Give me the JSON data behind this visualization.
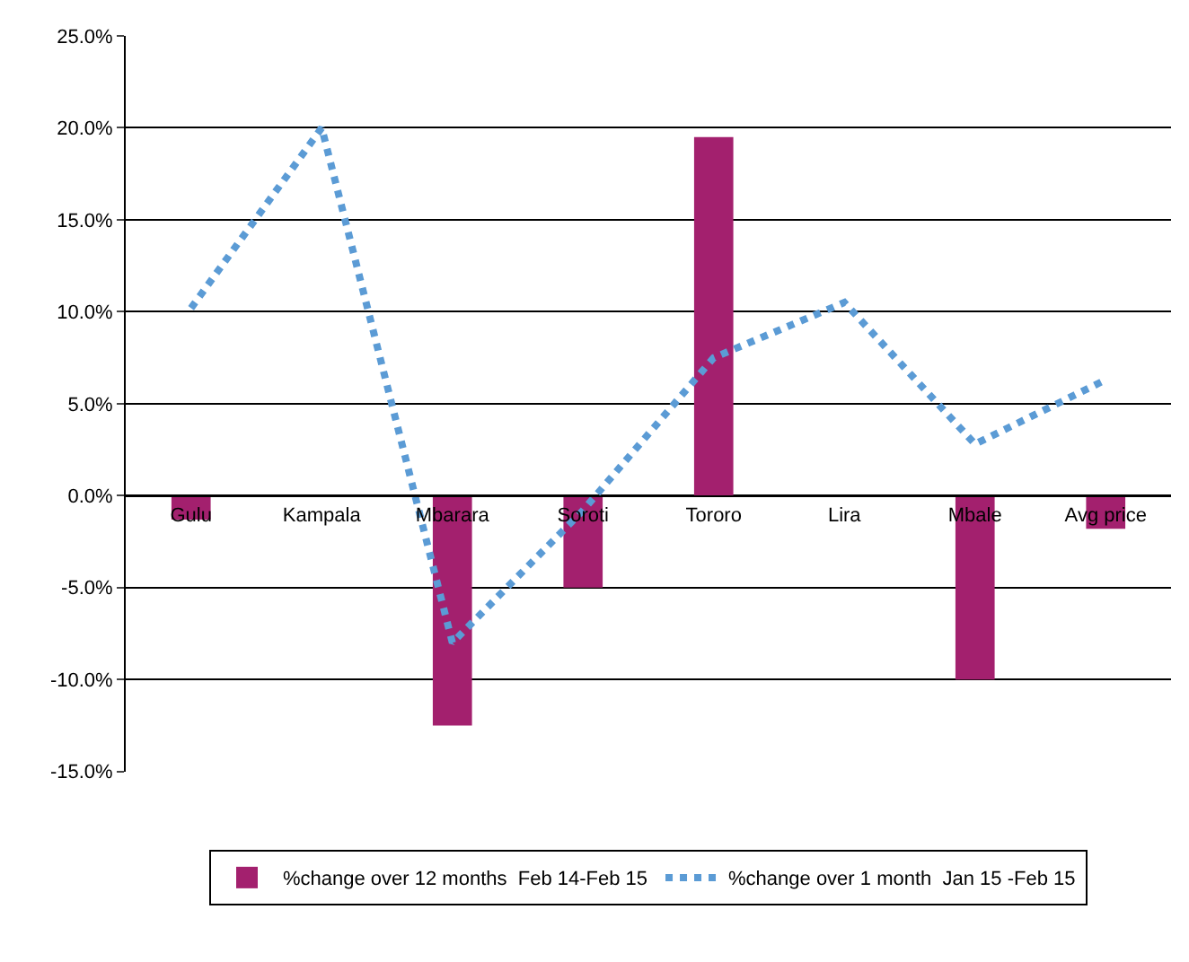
{
  "chart_data": {
    "type": "bar",
    "categories": [
      "Gulu",
      "Kampala",
      "Mbarara",
      "Soroti",
      "Tororo",
      "Lira",
      "Mbale",
      "Avg price"
    ],
    "series": [
      {
        "name": "%change over 12 months  Feb 14-Feb 15",
        "color": "#a3206e",
        "values": [
          -1.3,
          null,
          -12.5,
          -5.0,
          19.5,
          null,
          -10.0,
          -1.8
        ]
      },
      {
        "name": "%change over 1 month  Jan 15 -Feb 15",
        "type": "line",
        "color": "#5b9bd5",
        "line_style": "dotted",
        "values": [
          10.2,
          20.0,
          -8.0,
          -0.8,
          7.5,
          10.5,
          2.8,
          6.3
        ]
      }
    ],
    "ylim": [
      -15,
      25
    ],
    "yticks": [
      {
        "value": -15,
        "label": "-15.0%"
      },
      {
        "value": -10,
        "label": "-10.0%"
      },
      {
        "value": -5,
        "label": "-5.0%"
      },
      {
        "value": 0,
        "label": "0.0%"
      },
      {
        "value": 5,
        "label": "5.0%"
      },
      {
        "value": 10,
        "label": "10.0%"
      },
      {
        "value": 15,
        "label": "15.0%"
      },
      {
        "value": 20,
        "label": "20.0%"
      },
      {
        "value": 25,
        "label": "25.0%"
      }
    ],
    "grid": "y",
    "legend": "bottom",
    "marker": "none"
  }
}
